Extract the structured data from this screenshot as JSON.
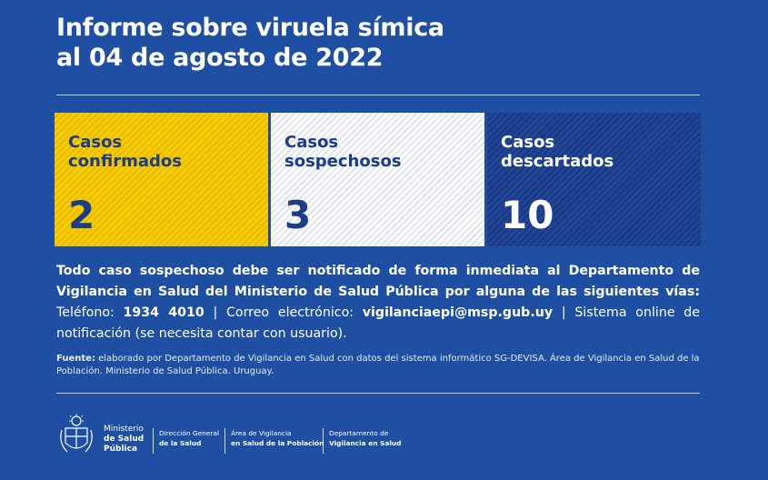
{
  "title": {
    "line1": "Informe sobre viruela símica",
    "line2": "al 04 de agosto de 2022"
  },
  "cards": [
    {
      "label_line1": "Casos",
      "label_line2": "confirmados",
      "value": "2",
      "color": "#f7cd00"
    },
    {
      "label_line1": "Casos",
      "label_line2": "sospechosos",
      "value": "3",
      "color": "#ffffff"
    },
    {
      "label_line1": "Casos",
      "label_line2": "descartados",
      "value": "10",
      "color": "#1a3c86"
    }
  ],
  "notice": {
    "bold_intro": "Todo caso sospechoso debe ser notificado de forma inmediata al Departamento de Vigilancia en Salud del Ministerio de Salud Pública por alguna de las siguientes vías:",
    "phone_label": "Teléfono:",
    "phone_value": "1934 4010",
    "sep1": "|",
    "email_label": "Correo electrónico:",
    "email_value": "vigilanciaepi@msp.gub.uy",
    "sep2": "|",
    "system_text": "Sistema online de notificación (se necesita contar con usuario)."
  },
  "source": {
    "label": "Fuente:",
    "text": "elaborado por Departamento de Vigilancia en Salud con datos del sistema informático SG-DEVISA. Área de Vigilancia en Salud de la Población. Ministerio de Salud Pública. Uruguay."
  },
  "footer": {
    "ministry_line1": "Ministerio",
    "ministry_line2": "de Salud",
    "ministry_line3": "Pública",
    "blocks": [
      {
        "line1": "Dirección General",
        "line2": "de la Salud"
      },
      {
        "line1": "Área de Vigilancia",
        "line2": "en Salud de la Población"
      },
      {
        "line1": "Departamento de",
        "line2": "Vigilancia en Salud"
      }
    ]
  },
  "colors": {
    "background": "#1e4fa3",
    "confirmed": "#f7cd00",
    "suspect": "#ffffff",
    "discarded": "#1a3c86"
  }
}
